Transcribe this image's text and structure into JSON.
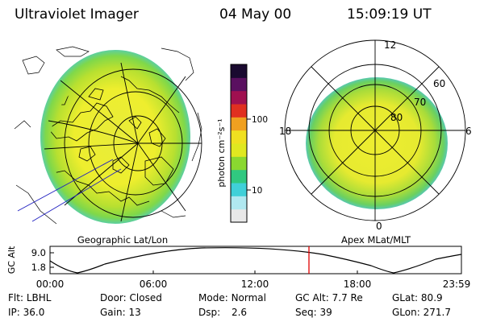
{
  "header": {
    "instrument": "Ultraviolet Imager",
    "date": "04 May 00",
    "time": "15:09:19 UT"
  },
  "left_panel": {
    "caption": "Geographic Lat/Lon"
  },
  "right_panel": {
    "caption": "Apex MLat/MLT",
    "mlt_labels": [
      "12",
      "18",
      "6",
      "0"
    ],
    "lat_labels": [
      "60",
      "70",
      "80"
    ]
  },
  "colorbar": {
    "unit_label": "photon cm⁻²s⁻¹",
    "ticks": [
      "100",
      "10"
    ],
    "scale": "log",
    "colors": [
      "#e8e8e8",
      "#b0e8f0",
      "#40d0d8",
      "#30c880",
      "#8ad830",
      "#e0e820",
      "#f0e020",
      "#f0a020",
      "#e03020",
      "#a01050",
      "#5a1060",
      "#1a0a30"
    ]
  },
  "alt_panel": {
    "ylabel": "GC Alt",
    "yticks": [
      "9.0",
      "1.8"
    ],
    "xticks": [
      "00:00",
      "06:00",
      "12:00",
      "18:00",
      "23:59"
    ],
    "marker_color": "#e00000",
    "marker_time": "15:09:19"
  },
  "footer": {
    "filter_label": "Flt:",
    "filter_value": "LBHL",
    "ip_label": "IP:",
    "ip_value": "36.0",
    "door_label": "Door:",
    "door_value": "Closed",
    "gain_label": "Gain:",
    "gain_value": "13",
    "mode_label": "Mode:",
    "mode_value": "Normal",
    "dsp_label": "Dsp:",
    "dsp_value": "2.6",
    "gcalt_label": "GC Alt:",
    "gcalt_value": "7.7 Re",
    "seq_label": "Seq:",
    "seq_value": "39",
    "glat_label": "GLat:",
    "glat_value": "80.9",
    "glon_label": "GLon:",
    "glon_value": "271.7"
  }
}
